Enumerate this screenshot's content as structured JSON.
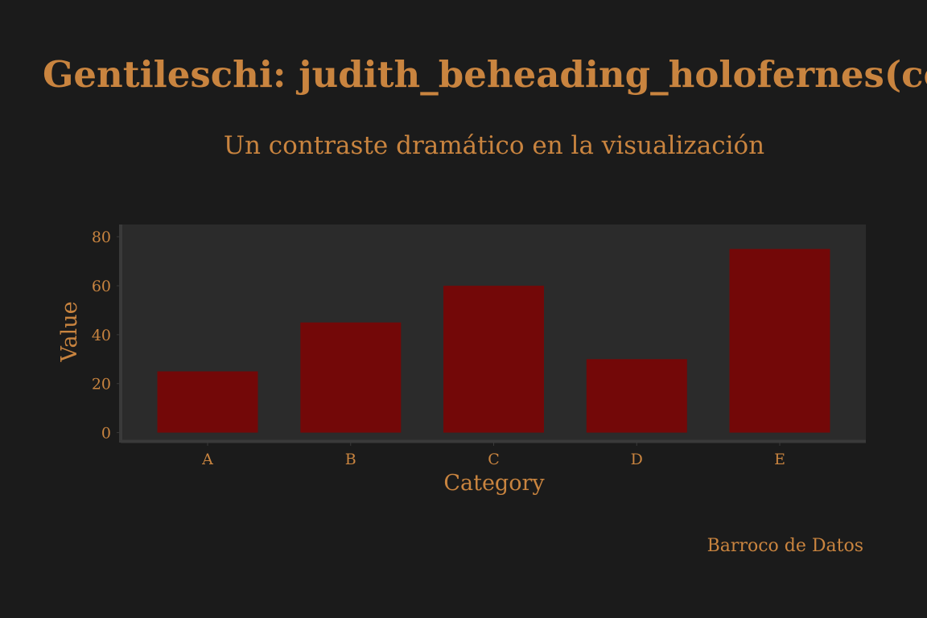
{
  "colors": {
    "background": "#1b1b1b",
    "panel": "#2b2b2b",
    "axis_line": "#3a3a3a",
    "text": "#c9843f",
    "bar": "#730808"
  },
  "chart_data": {
    "type": "bar",
    "title": "Gentileschi: judith_beheading_holofernes(column",
    "subtitle": "Un contraste dramático en la visualización",
    "xlabel": "Category",
    "ylabel": "Value",
    "categories": [
      "A",
      "B",
      "C",
      "D",
      "E"
    ],
    "values": [
      25,
      45,
      60,
      30,
      75
    ],
    "ylim": [
      -3.75,
      85
    ],
    "yticks": [
      0,
      20,
      40,
      60,
      80
    ],
    "grid": false,
    "legend": "none",
    "caption": "Barroco de Datos"
  }
}
